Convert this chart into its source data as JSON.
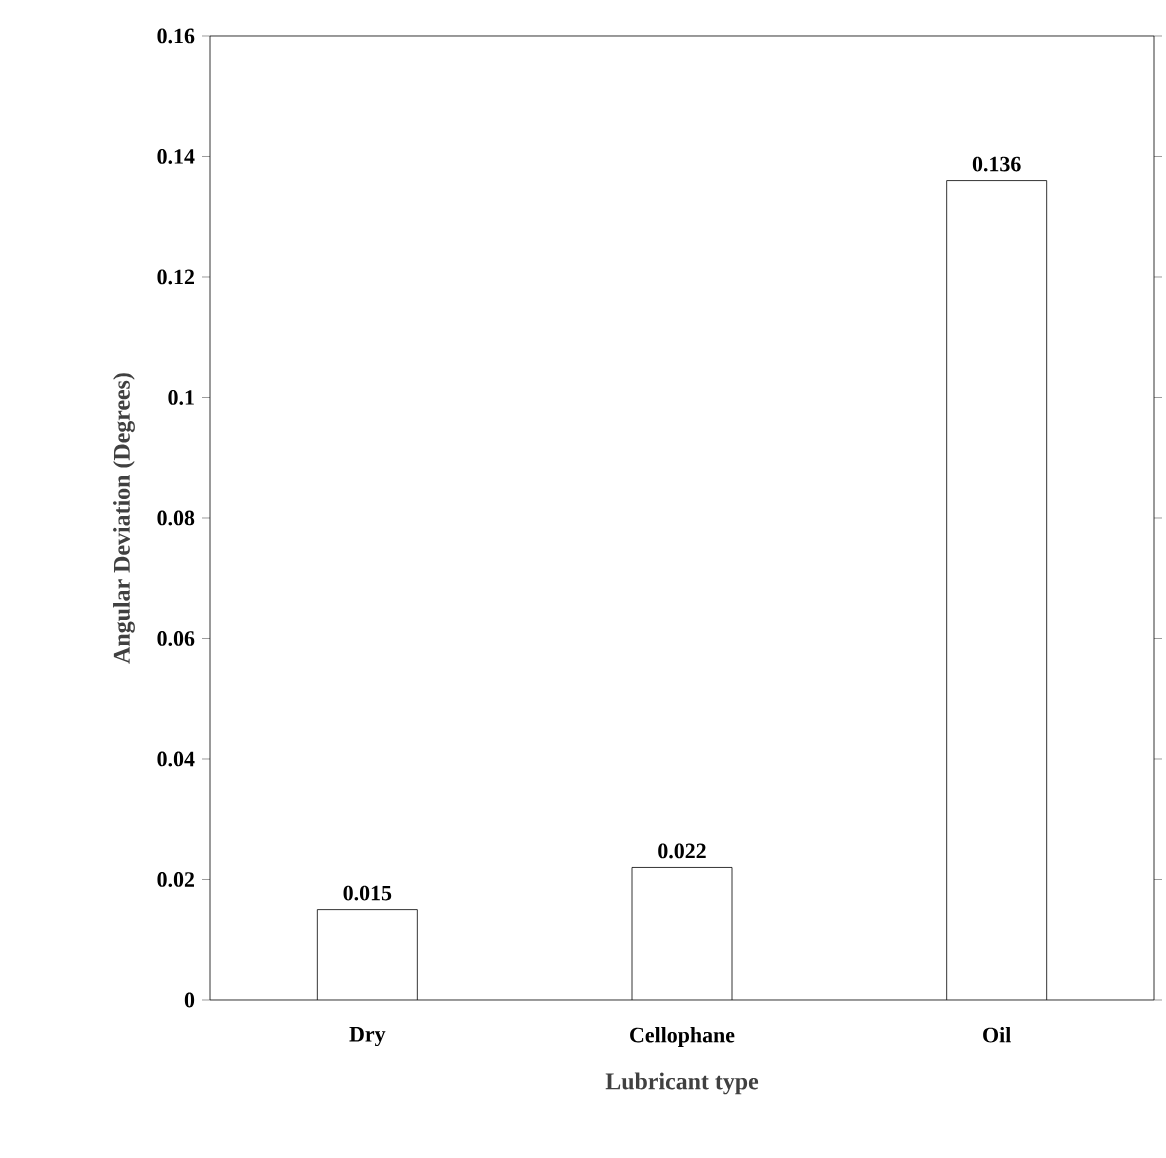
{
  "chart_data": {
    "type": "bar",
    "xlabel": "Lubricant type",
    "ylabel": "Angular Deviation (Degrees)",
    "categories": [
      "Dry",
      "Cellophane",
      "Oil"
    ],
    "values": [
      0.015,
      0.022,
      0.136
    ],
    "color": "#ffffff",
    "ylim": [
      0,
      0.16
    ],
    "yticks": [
      0,
      0.02,
      0.04,
      0.06,
      0.08,
      0.1,
      0.12,
      0.14,
      0.16
    ],
    "data_labels": true
  }
}
